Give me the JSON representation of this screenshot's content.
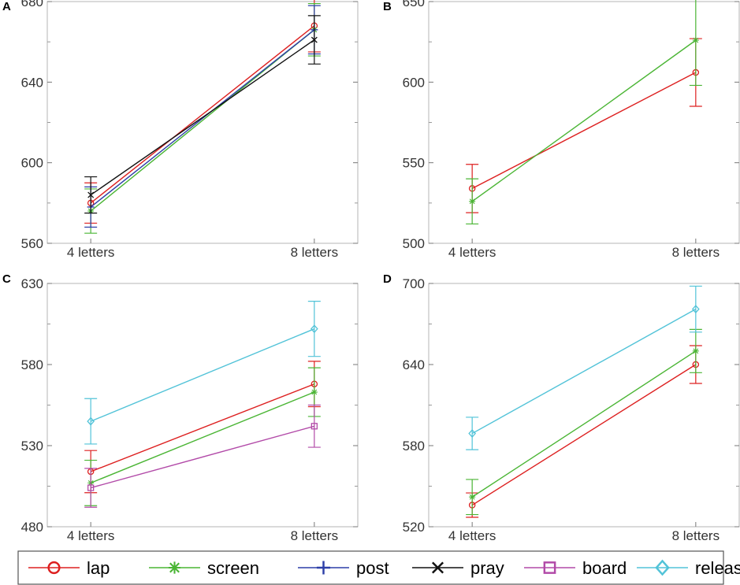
{
  "chart_data": [
    {
      "type": "line",
      "panel_label": "A",
      "categories": [
        "4 letters",
        "8 letters"
      ],
      "ylim": [
        560,
        680
      ],
      "yticks": [
        "560",
        "600",
        "640",
        "680"
      ],
      "series": [
        {
          "name": "lap",
          "values": [
            580,
            668
          ],
          "errors": [
            [
              10,
              10
            ],
            [
              13,
              13
            ]
          ]
        },
        {
          "name": "screen",
          "values": [
            576,
            666
          ],
          "errors": [
            [
              11,
              11
            ],
            [
              13,
              13
            ]
          ]
        },
        {
          "name": "post",
          "values": [
            578,
            666
          ],
          "errors": [
            [
              10,
              10
            ],
            [
              12,
              12
            ]
          ]
        },
        {
          "name": "pray",
          "values": [
            584,
            661
          ],
          "errors": [
            [
              9,
              9
            ],
            [
              12,
              12
            ]
          ]
        }
      ]
    },
    {
      "type": "line",
      "panel_label": "B",
      "categories": [
        "4 letters",
        "8 letters"
      ],
      "ylim": [
        500,
        650
      ],
      "yticks": [
        "500",
        "550",
        "600",
        "650"
      ],
      "series": [
        {
          "name": "lap",
          "values": [
            534,
            606
          ],
          "errors": [
            [
              15,
              15
            ],
            [
              21,
              21
            ]
          ]
        },
        {
          "name": "screen",
          "values": [
            526,
            626
          ],
          "errors": [
            [
              14,
              14
            ],
            [
              28,
              28
            ]
          ]
        }
      ]
    },
    {
      "type": "line",
      "panel_label": "C",
      "categories": [
        "4 letters",
        "8 letters"
      ],
      "ylim": [
        480,
        630
      ],
      "yticks": [
        "480",
        "530",
        "580",
        "630"
      ],
      "series": [
        {
          "name": "lap",
          "values": [
            514,
            568
          ],
          "errors": [
            [
              13,
              13
            ],
            [
              14,
              14
            ]
          ]
        },
        {
          "name": "screen",
          "values": [
            507,
            563
          ],
          "errors": [
            [
              14,
              14
            ],
            [
              15,
              15
            ]
          ]
        },
        {
          "name": "board",
          "values": [
            504,
            542
          ],
          "errors": [
            [
              12,
              12
            ],
            [
              13,
              13
            ]
          ]
        },
        {
          "name": "release",
          "values": [
            545,
            602
          ],
          "errors": [
            [
              14,
              14
            ],
            [
              17,
              17
            ]
          ]
        }
      ]
    },
    {
      "type": "line",
      "panel_label": "D",
      "categories": [
        "4 letters",
        "8 letters"
      ],
      "ylim": [
        520,
        700
      ],
      "yticks": [
        "520",
        "580",
        "640",
        "700"
      ],
      "series": [
        {
          "name": "lap",
          "values": [
            536,
            640
          ],
          "errors": [
            [
              9,
              9
            ],
            [
              14,
              14
            ]
          ]
        },
        {
          "name": "screen",
          "values": [
            542,
            650
          ],
          "errors": [
            [
              13,
              13
            ],
            [
              16,
              16
            ]
          ]
        },
        {
          "name": "release",
          "values": [
            589,
            681
          ],
          "errors": [
            [
              12,
              12
            ],
            [
              17,
              17
            ]
          ]
        }
      ]
    }
  ],
  "legend": {
    "entries": [
      {
        "name": "lap",
        "label": "lap",
        "color": "#dd2020",
        "marker": "circle"
      },
      {
        "name": "screen",
        "label": "screen",
        "color": "#4ab534",
        "marker": "star"
      },
      {
        "name": "post",
        "label": "post",
        "color": "#2d3fa8",
        "marker": "plus"
      },
      {
        "name": "pray",
        "label": "pray",
        "color": "#111111",
        "marker": "x"
      },
      {
        "name": "board",
        "label": "board",
        "color": "#b24aa8",
        "marker": "square"
      },
      {
        "name": "release",
        "label": "release",
        "color": "#52c3d8",
        "marker": "diamond"
      }
    ]
  }
}
